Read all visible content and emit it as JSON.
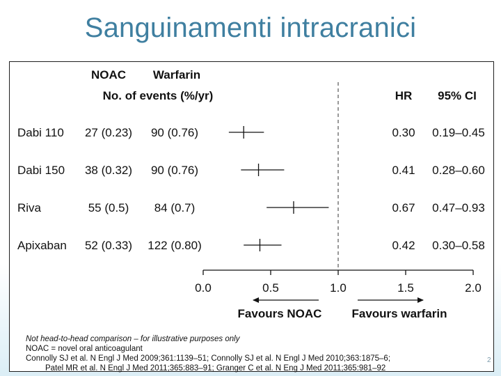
{
  "slide": {
    "title": "Sanguinamenti intracranici",
    "page_number": "2"
  },
  "chart_data": {
    "type": "forest",
    "column_headers": {
      "noac": "NOAC",
      "warfarin": "Warfarin",
      "events": "No. of events (%/yr)",
      "hr": "HR",
      "ci": "95% CI"
    },
    "rows": [
      {
        "label": "Dabi 110",
        "noac": "27 (0.23)",
        "warfarin": "90 (0.76)",
        "hr": 0.3,
        "hr_text": "0.30",
        "lo": 0.19,
        "hi": 0.45,
        "ci_text": "0.19–0.45"
      },
      {
        "label": "Dabi 150",
        "noac": "38 (0.32)",
        "warfarin": "90 (0.76)",
        "hr": 0.41,
        "hr_text": "0.41",
        "lo": 0.28,
        "hi": 0.6,
        "ci_text": "0.28–0.60"
      },
      {
        "label": "Riva",
        "noac": "55 (0.5)",
        "warfarin": "84 (0.7)",
        "hr": 0.67,
        "hr_text": "0.67",
        "lo": 0.47,
        "hi": 0.93,
        "ci_text": "0.47–0.93"
      },
      {
        "label": "Apixaban",
        "noac": "52 (0.33)",
        "warfarin": "122 (0.80)",
        "hr": 0.42,
        "hr_text": "0.42",
        "lo": 0.3,
        "hi": 0.58,
        "ci_text": "0.30–0.58"
      }
    ],
    "x_axis": {
      "min": 0.0,
      "max": 2.0,
      "reference": 1.0,
      "ticks": [
        0.0,
        0.5,
        1.0,
        1.5,
        2.0
      ],
      "tick_labels": [
        "0.0",
        "0.5",
        "1.0",
        "1.5",
        "2.0"
      ]
    },
    "favours": {
      "left": "Favours NOAC",
      "right": "Favours warfarin"
    }
  },
  "footnotes": {
    "line1": "Not head-to-head comparison – for illustrative purposes only",
    "line2": "NOAC = novel oral anticoagulant",
    "line3": "Connolly SJ et al. N Engl J Med 2009;361:1139–51; Connolly SJ et al. N Engl J Med 2010;363:1875–6;",
    "line4": "Patel MR et al. N Engl J Med 2011;365:883–91; Granger C et al. N Eng J Med 2011;365:981–92"
  }
}
